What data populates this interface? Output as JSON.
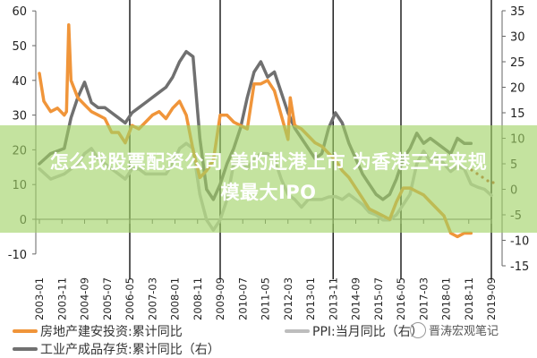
{
  "chart_data": {
    "type": "line",
    "title": "",
    "xlabel": "",
    "ylabel_left": "",
    "ylabel_right": "",
    "ylim_left": [
      -10,
      60
    ],
    "ylim_right": [
      -15,
      35
    ],
    "yticks_left": [
      "60",
      "50",
      "40",
      "30",
      "20",
      "10",
      "0",
      "-10"
    ],
    "yticks_right": [
      "35",
      "30",
      "25",
      "20",
      "15",
      "10",
      "5",
      "0",
      "-5",
      "-10",
      "-15"
    ],
    "xticks": [
      "2003-01",
      "2003-11",
      "2004-09",
      "2005-07",
      "2006-05",
      "2007-03",
      "2008-01",
      "2008-11",
      "2009-09",
      "2010-07",
      "2011-05",
      "2012-03",
      "2013-01",
      "2013-11",
      "2014-09",
      "2015-07",
      "2016-05",
      "2017-03",
      "2018-01",
      "2018-11",
      "2019-09"
    ],
    "vertical_lines": [
      "2006-05",
      "2009-09",
      "2013-11",
      "2016-05",
      "2019-09"
    ],
    "grid": false,
    "legend_position": "bottom",
    "series": [
      {
        "name": "房地产建安投资:累计同比",
        "axis": "left",
        "color": "#F0953A",
        "x": [
          "2003-01",
          "2003-03",
          "2003-06",
          "2003-09",
          "2003-12",
          "2004-01",
          "2004-02",
          "2004-03",
          "2004-06",
          "2004-09",
          "2004-12",
          "2005-03",
          "2005-06",
          "2005-09",
          "2005-12",
          "2006-03",
          "2006-06",
          "2006-09",
          "2006-12",
          "2007-03",
          "2007-06",
          "2007-09",
          "2007-12",
          "2008-03",
          "2008-06",
          "2008-09",
          "2008-12",
          "2009-03",
          "2009-06",
          "2009-09",
          "2009-12",
          "2010-03",
          "2010-06",
          "2010-09",
          "2010-12",
          "2011-03",
          "2011-06",
          "2011-09",
          "2011-12",
          "2012-03",
          "2012-04",
          "2012-06",
          "2012-09",
          "2012-12",
          "2013-03",
          "2013-06",
          "2013-09",
          "2013-12",
          "2014-03",
          "2014-06",
          "2014-09",
          "2014-12",
          "2015-03",
          "2015-06",
          "2015-09",
          "2015-12",
          "2016-03",
          "2016-06",
          "2016-09",
          "2016-12",
          "2017-03",
          "2017-06",
          "2017-09",
          "2017-12",
          "2018-03",
          "2018-06",
          "2018-09",
          "2018-12"
        ],
        "values": [
          42,
          34,
          31,
          32,
          30,
          31,
          56,
          40,
          35,
          33,
          31,
          30,
          29,
          25,
          25,
          22,
          27,
          26,
          28,
          30,
          31,
          29,
          32,
          34,
          30,
          20,
          12,
          14,
          17,
          30,
          30,
          28,
          27,
          26,
          39,
          39,
          40,
          37,
          30,
          23,
          35,
          27,
          26,
          24,
          22,
          21,
          19,
          17,
          14,
          12,
          9,
          6,
          3,
          2,
          1,
          0,
          5,
          9,
          9,
          8,
          7,
          5,
          3,
          1,
          -4,
          -5,
          -4,
          -4
        ]
      },
      {
        "name": "工业产成品存货:累计同比（右）",
        "axis": "right",
        "color": "#707070",
        "x": [
          "2003-01",
          "2003-06",
          "2003-12",
          "2004-03",
          "2004-06",
          "2004-09",
          "2004-12",
          "2005-03",
          "2005-06",
          "2005-09",
          "2005-12",
          "2006-03",
          "2006-06",
          "2006-09",
          "2006-12",
          "2007-03",
          "2007-06",
          "2007-09",
          "2007-12",
          "2008-03",
          "2008-06",
          "2008-09",
          "2008-12",
          "2009-03",
          "2009-06",
          "2009-09",
          "2009-12",
          "2010-03",
          "2010-06",
          "2010-09",
          "2010-12",
          "2011-03",
          "2011-06",
          "2011-09",
          "2011-12",
          "2012-03",
          "2012-06",
          "2012-09",
          "2012-12",
          "2013-03",
          "2013-06",
          "2013-09",
          "2013-12",
          "2014-03",
          "2014-06",
          "2014-09",
          "2014-12",
          "2015-03",
          "2015-06",
          "2015-09",
          "2015-12",
          "2016-03",
          "2016-06",
          "2016-09",
          "2016-12",
          "2017-03",
          "2017-06",
          "2017-09",
          "2017-12",
          "2018-03",
          "2018-06",
          "2018-09",
          "2018-12"
        ],
        "values": [
          5,
          7,
          8,
          14,
          18,
          21,
          17,
          16,
          16,
          15,
          14,
          13,
          15,
          16,
          17,
          18,
          19,
          20,
          22,
          25,
          27,
          26,
          10,
          0,
          -2,
          1,
          5,
          8,
          12,
          18,
          23,
          25,
          22,
          23,
          19,
          15,
          12,
          10,
          8,
          6,
          7,
          12,
          15,
          13,
          9,
          6,
          3,
          1,
          -1,
          -2,
          -1,
          2,
          6,
          8,
          11,
          9,
          10,
          9,
          8,
          7,
          10,
          9,
          9
        ]
      },
      {
        "name": "PPI:当月同比（右）",
        "axis": "right",
        "color": "#BDBDBD",
        "x": [
          "2003-01",
          "2003-06",
          "2003-12",
          "2004-03",
          "2004-06",
          "2004-09",
          "2004-12",
          "2005-03",
          "2005-06",
          "2005-09",
          "2005-12",
          "2006-03",
          "2006-06",
          "2006-09",
          "2006-12",
          "2007-03",
          "2007-06",
          "2007-09",
          "2007-12",
          "2008-03",
          "2008-06",
          "2008-09",
          "2008-12",
          "2009-03",
          "2009-06",
          "2009-09",
          "2009-12",
          "2010-03",
          "2010-06",
          "2010-09",
          "2010-12",
          "2011-03",
          "2011-06",
          "2011-09",
          "2011-12",
          "2012-03",
          "2012-06",
          "2012-09",
          "2012-12",
          "2013-03",
          "2013-06",
          "2013-09",
          "2013-12",
          "2014-03",
          "2014-06",
          "2014-09",
          "2014-12",
          "2015-03",
          "2015-06",
          "2015-09",
          "2015-12",
          "2016-03",
          "2016-06",
          "2016-09",
          "2016-12",
          "2017-03",
          "2017-06",
          "2017-09",
          "2017-12",
          "2018-03",
          "2018-06",
          "2018-09",
          "2018-12",
          "2019-03",
          "2019-06",
          "2019-09"
        ],
        "values": [
          4,
          2,
          3,
          4,
          5,
          7,
          8,
          6,
          5,
          4,
          3,
          2,
          4,
          4,
          3,
          3,
          3,
          3,
          5,
          8,
          9,
          8,
          -1,
          -6,
          -8,
          -6,
          -2,
          5,
          6,
          4,
          6,
          7,
          7,
          6,
          2,
          -1,
          -2,
          -3.5,
          -2,
          -2,
          -2,
          -1.5,
          -1.4,
          -2,
          -1,
          -2,
          -3,
          -4.5,
          -5,
          -6,
          -6,
          -5,
          -3,
          -1,
          5,
          7.5,
          5.5,
          6.5,
          5,
          3.5,
          4.5,
          4,
          1,
          0.4,
          0,
          -1.2
        ]
      }
    ]
  },
  "legend": {
    "items": [
      {
        "label": "房地产建安投资:累计同比",
        "color": "#F0953A"
      },
      {
        "label": "PPI:当月同比（右）",
        "color": "#BDBDBD"
      },
      {
        "label": "工业产成品存货:累计同比（右）",
        "color": "#707070"
      }
    ]
  },
  "watermark": {
    "label": "晋涛宏观笔记"
  },
  "overlay": {
    "line1": "怎么找股票配资公司 美的赴港上市 为香港三年来规",
    "line2": "模最大IPO",
    "color": "#A0D264"
  }
}
